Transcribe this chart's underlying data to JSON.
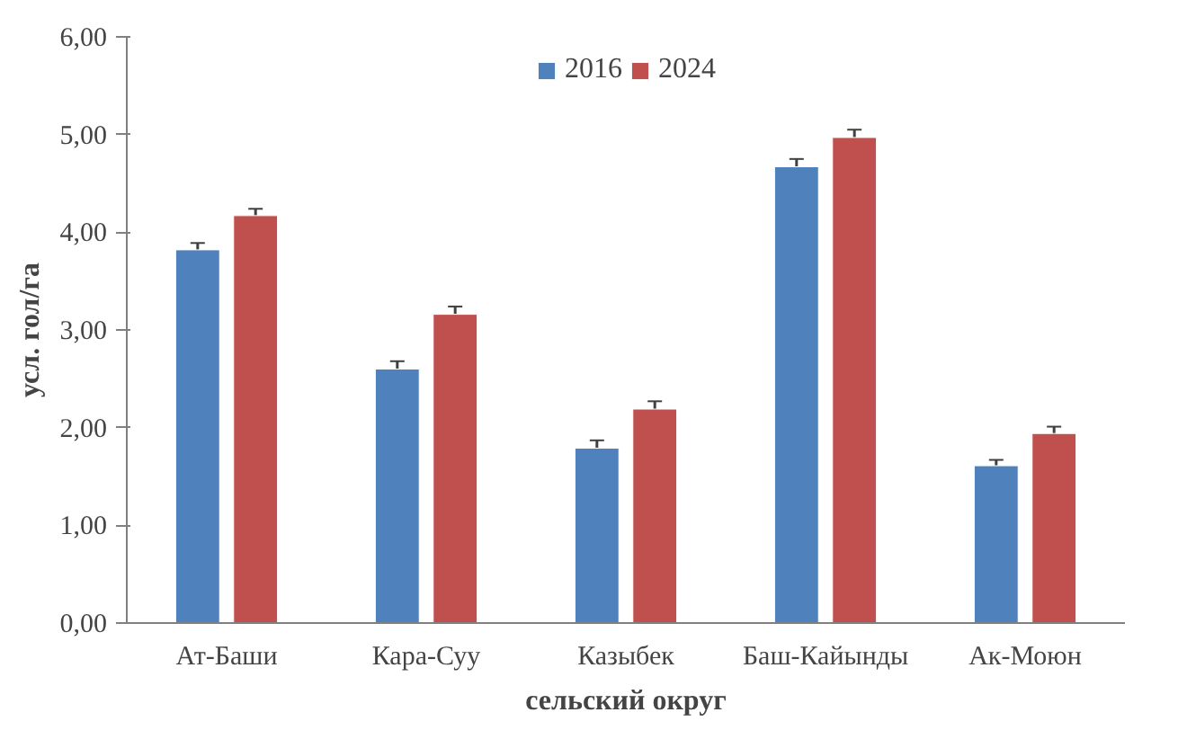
{
  "chart_data": {
    "type": "bar",
    "xlabel": "сельский округ",
    "ylabel": "усл. гол/га",
    "categories": [
      "Ат-Баши",
      "Кара-Суу",
      "Казыбек",
      "Баш-Кайынды",
      "Ак-Моюн"
    ],
    "series": [
      {
        "name": "2016",
        "color": "#4f81bd",
        "values": [
          3.82,
          2.6,
          1.79,
          4.67,
          1.61
        ],
        "errors": [
          0.07,
          0.08,
          0.08,
          0.08,
          0.06
        ]
      },
      {
        "name": "2024",
        "color": "#c0504d",
        "values": [
          4.17,
          3.16,
          2.19,
          4.97,
          1.94
        ],
        "errors": [
          0.07,
          0.08,
          0.08,
          0.08,
          0.07
        ]
      }
    ],
    "ylim": [
      0,
      6
    ],
    "yticks": [
      {
        "value": 0,
        "label": "0,00"
      },
      {
        "value": 1,
        "label": "1,00"
      },
      {
        "value": 2,
        "label": "2,00"
      },
      {
        "value": 3,
        "label": "3,00"
      },
      {
        "value": 4,
        "label": "4,00"
      },
      {
        "value": 5,
        "label": "5,00"
      },
      {
        "value": 6,
        "label": "6,00"
      }
    ],
    "grid": false,
    "legend": "top"
  }
}
